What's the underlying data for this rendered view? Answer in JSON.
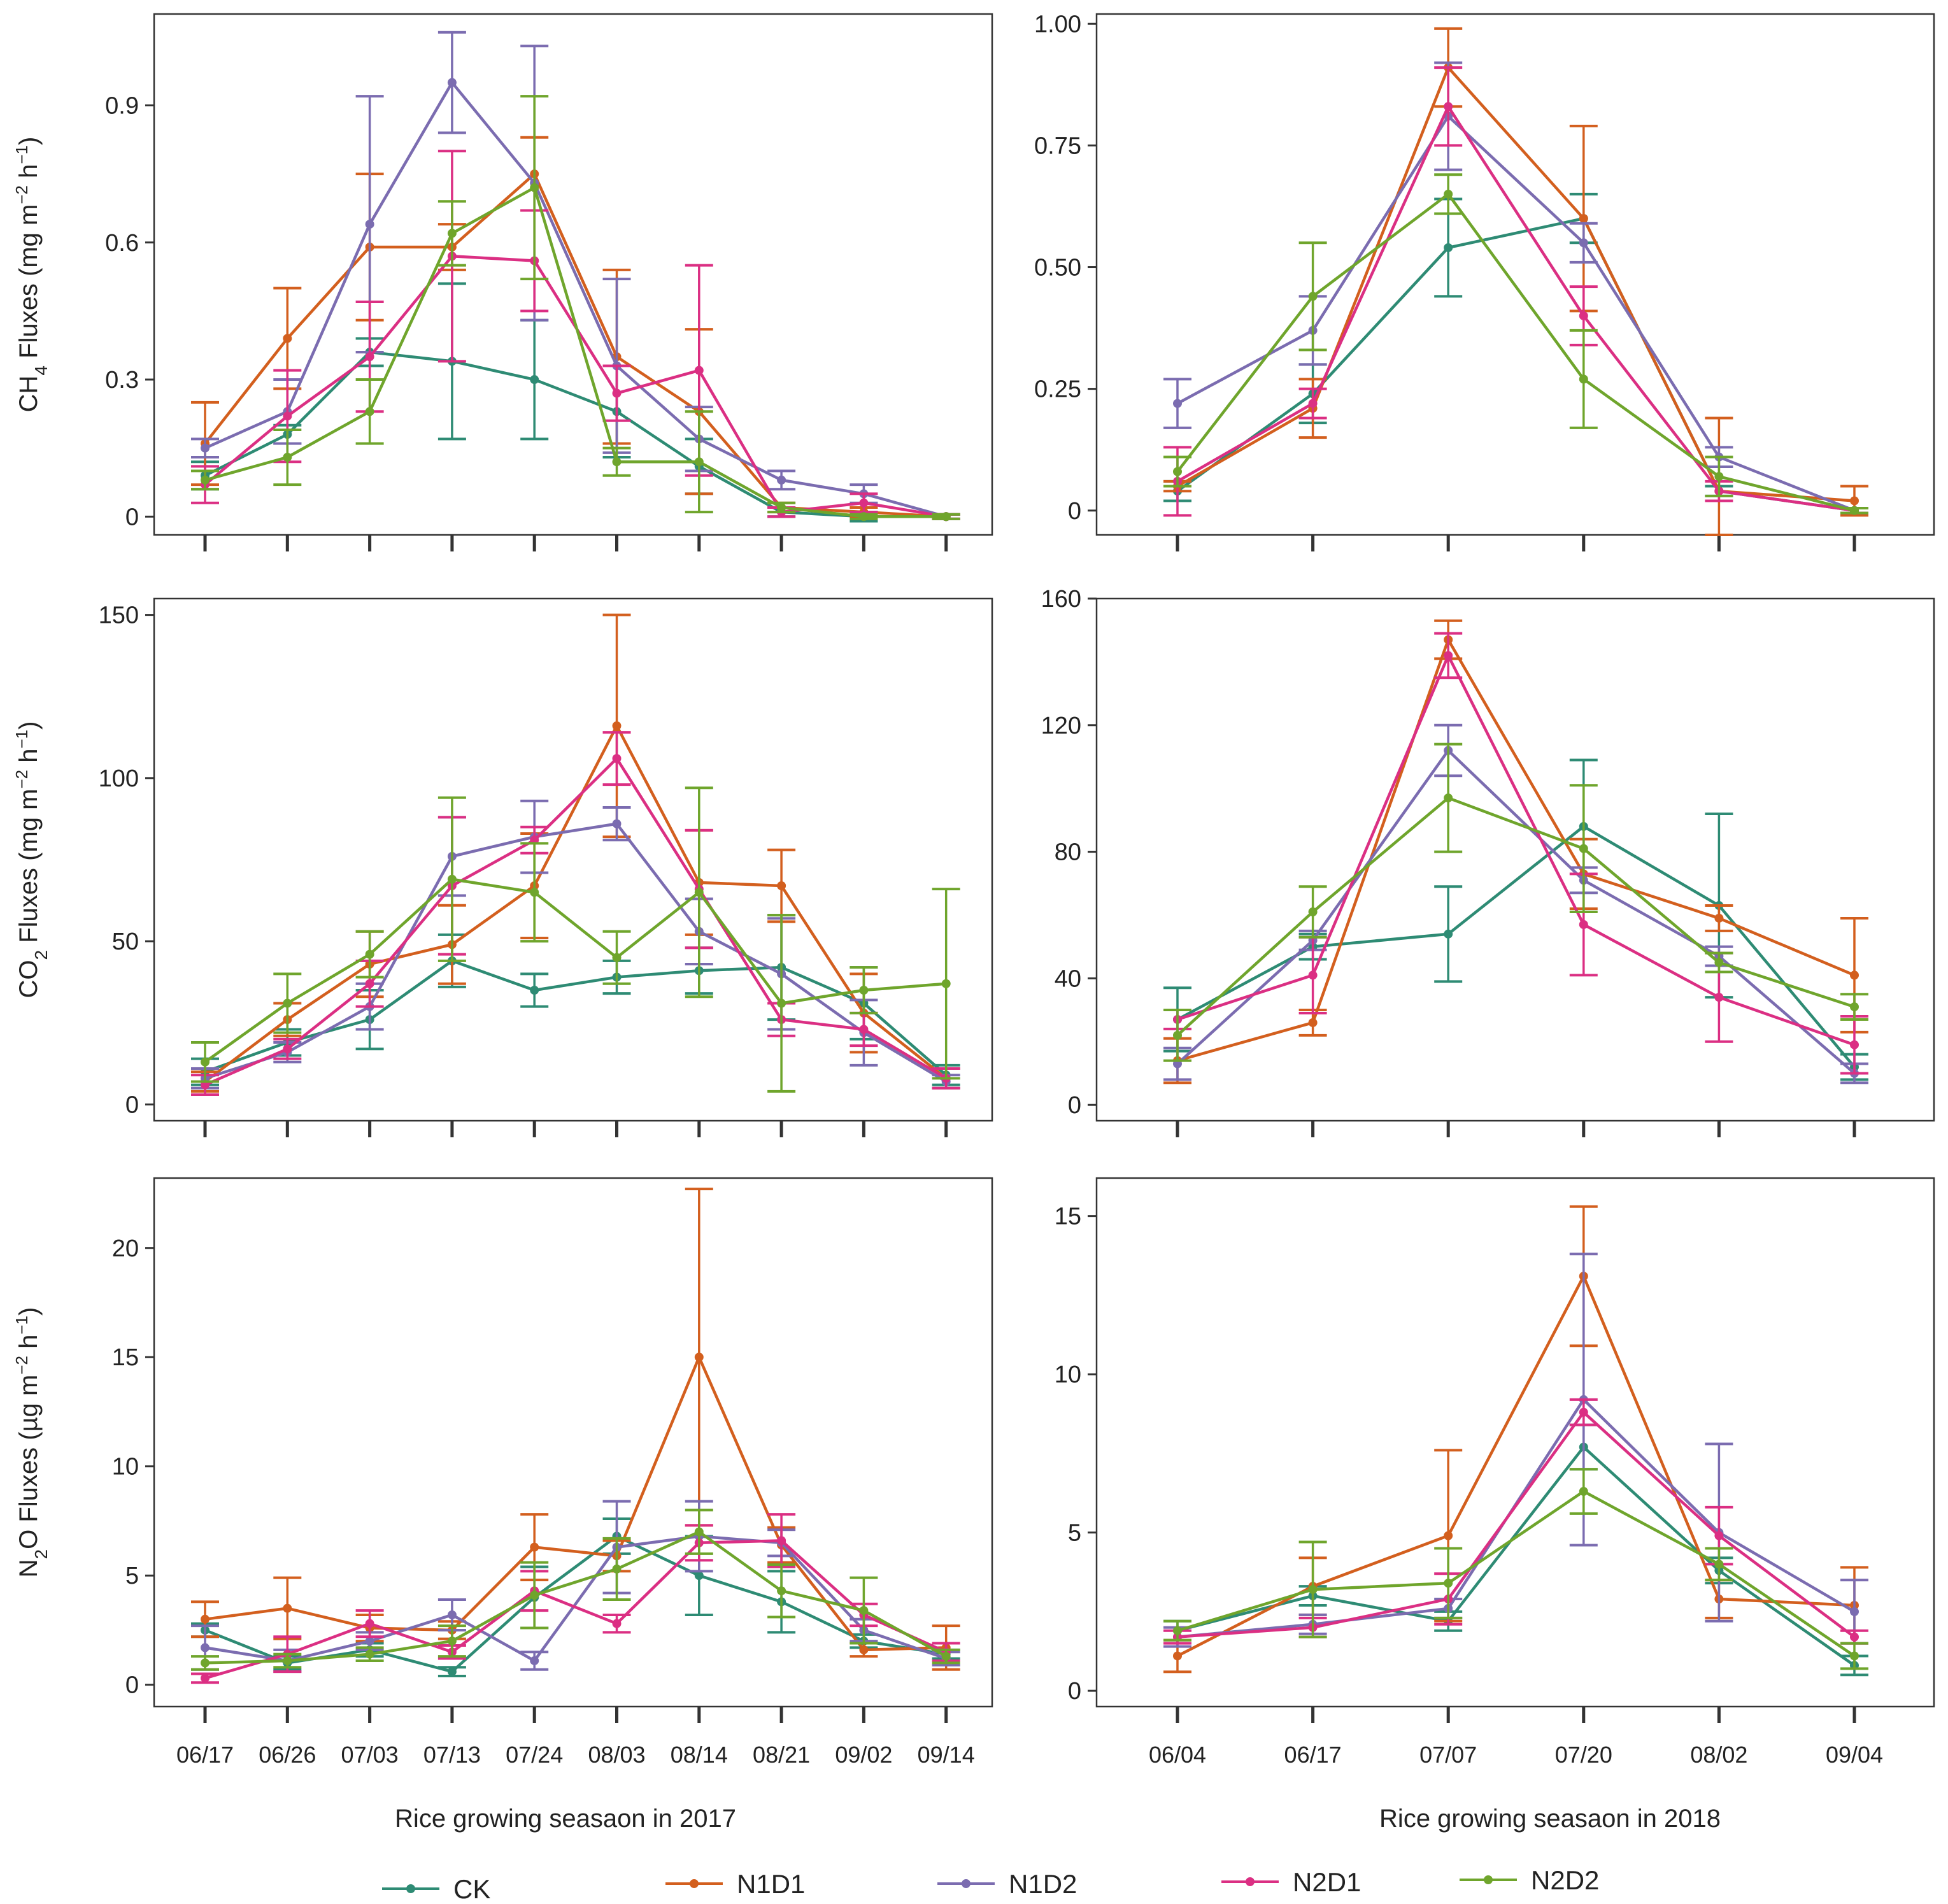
{
  "figure": {
    "x_titles": [
      "Rice growing seasaon in 2017",
      "Rice growing seasaon in 2018"
    ]
  },
  "legend": {
    "items": [
      {
        "name": "CK",
        "color": "#2E8B74"
      },
      {
        "name": "N1D1",
        "color": "#D35F1E"
      },
      {
        "name": "N1D2",
        "color": "#7B6CB0"
      },
      {
        "name": "N2D1",
        "color": "#DB2F83"
      },
      {
        "name": "N2D2",
        "color": "#6FA52C"
      }
    ]
  },
  "chart_data": [
    {
      "id": "ch4-2017",
      "type": "line",
      "ylabel": {
        "base": "CH",
        "sub": "4",
        "text": " Fluxes (mg m",
        "sup1": "−2",
        "mid": " h",
        "sup2": "−1",
        "end": ")"
      },
      "categories": [
        "06/17",
        "06/26",
        "07/03",
        "07/13",
        "07/24",
        "08/03",
        "08/14",
        "08/21",
        "09/02",
        "09/14"
      ],
      "show_xticklabels": false,
      "ylim": [
        -0.04,
        1.1
      ],
      "yticks": [
        {
          "v": 0,
          "label": "0"
        },
        {
          "v": 0.3,
          "label": "0.3"
        },
        {
          "v": 0.6,
          "label": "0.6"
        },
        {
          "v": 0.9,
          "label": "0.9"
        }
      ],
      "series": [
        {
          "name": "CK",
          "values": [
            0.09,
            0.18,
            0.36,
            0.34,
            0.3,
            0.23,
            0.11,
            0.01,
            0.0,
            0.0
          ],
          "errors": [
            0.03,
            0.02,
            0.03,
            0.17,
            0.13,
            0.1,
            0.06,
            0.01,
            0.01,
            0.005
          ]
        },
        {
          "name": "N1D1",
          "values": [
            0.16,
            0.39,
            0.59,
            0.59,
            0.75,
            0.35,
            0.23,
            0.02,
            0.01,
            0.0
          ],
          "errors": [
            0.09,
            0.11,
            0.16,
            0.05,
            0.08,
            0.19,
            0.18,
            0.01,
            0.01,
            0.005
          ]
        },
        {
          "name": "N1D2",
          "values": [
            0.15,
            0.23,
            0.64,
            0.95,
            0.73,
            0.33,
            0.17,
            0.08,
            0.05,
            0.0
          ],
          "errors": [
            0.02,
            0.07,
            0.28,
            0.11,
            0.3,
            0.19,
            0.07,
            0.02,
            0.02,
            0.005
          ]
        },
        {
          "name": "N2D1",
          "values": [
            0.07,
            0.22,
            0.35,
            0.57,
            0.56,
            0.27,
            0.32,
            0.01,
            0.03,
            0.0
          ],
          "errors": [
            0.04,
            0.1,
            0.12,
            0.23,
            0.11,
            0.06,
            0.23,
            0.01,
            0.02,
            0.005
          ]
        },
        {
          "name": "N2D2",
          "values": [
            0.08,
            0.13,
            0.23,
            0.62,
            0.72,
            0.12,
            0.12,
            0.02,
            0.0,
            0.0
          ],
          "errors": [
            0.02,
            0.06,
            0.07,
            0.07,
            0.2,
            0.03,
            0.11,
            0.01,
            0.005,
            0.005
          ]
        }
      ]
    },
    {
      "id": "ch4-2018",
      "type": "line",
      "categories": [
        "06/04",
        "06/17",
        "07/07",
        "07/20",
        "08/02",
        "09/04"
      ],
      "show_xticklabels": false,
      "ylim": [
        -0.05,
        1.02
      ],
      "yticks": [
        {
          "v": 0,
          "label": "0"
        },
        {
          "v": 0.25,
          "label": "0.25"
        },
        {
          "v": 0.5,
          "label": "0.50"
        },
        {
          "v": 0.75,
          "label": "0.75"
        },
        {
          "v": 1.0,
          "label": "1.00"
        }
      ],
      "series": [
        {
          "name": "CK",
          "values": [
            0.04,
            0.24,
            0.54,
            0.6,
            0.04,
            0.0
          ],
          "errors": [
            0.02,
            0.06,
            0.1,
            0.05,
            0.01,
            0.005
          ]
        },
        {
          "name": "N1D1",
          "values": [
            0.05,
            0.21,
            0.91,
            0.6,
            0.04,
            0.02
          ],
          "errors": [
            0.01,
            0.06,
            0.08,
            0.19,
            0.15,
            0.03
          ]
        },
        {
          "name": "N1D2",
          "values": [
            0.22,
            0.37,
            0.81,
            0.55,
            0.11,
            0.0
          ],
          "errors": [
            0.05,
            0.07,
            0.11,
            0.04,
            0.02,
            0.005
          ]
        },
        {
          "name": "N2D1",
          "values": [
            0.06,
            0.22,
            0.83,
            0.4,
            0.04,
            0.0
          ],
          "errors": [
            0.07,
            0.03,
            0.08,
            0.06,
            0.02,
            0.005
          ]
        },
        {
          "name": "N2D2",
          "values": [
            0.08,
            0.44,
            0.65,
            0.27,
            0.07,
            0.0
          ],
          "errors": [
            0.03,
            0.11,
            0.04,
            0.1,
            0.04,
            0.005
          ]
        }
      ]
    },
    {
      "id": "co2-2017",
      "type": "line",
      "ylabel": {
        "base": "CO",
        "sub": "2",
        "text": " Fluxes (mg m",
        "sup1": "−2",
        "mid": " h",
        "sup2": "−1",
        "end": ")"
      },
      "categories": [
        "06/17",
        "06/26",
        "07/03",
        "07/13",
        "07/24",
        "08/03",
        "08/14",
        "08/21",
        "09/02",
        "09/14"
      ],
      "show_xticklabels": false,
      "ylim": [
        -5,
        155
      ],
      "yticks": [
        {
          "v": 0,
          "label": "0"
        },
        {
          "v": 50,
          "label": "50"
        },
        {
          "v": 100,
          "label": "100"
        },
        {
          "v": 150,
          "label": "150"
        }
      ],
      "series": [
        {
          "name": "CK",
          "values": [
            10,
            19,
            26,
            44,
            35,
            39,
            41,
            42,
            31,
            9
          ],
          "errors": [
            4,
            4,
            9,
            8,
            5,
            5,
            7,
            16,
            11,
            3
          ]
        },
        {
          "name": "N1D1",
          "values": [
            7,
            26,
            43,
            49,
            67,
            116,
            68,
            67,
            28,
            8
          ],
          "errors": [
            3,
            5,
            10,
            12,
            16,
            34,
            16,
            11,
            12,
            3
          ]
        },
        {
          "name": "N1D2",
          "values": [
            8,
            16,
            30,
            76,
            82,
            86,
            53,
            40,
            22,
            7
          ],
          "errors": [
            3,
            3,
            7,
            12,
            11,
            5,
            10,
            17,
            10,
            2
          ]
        },
        {
          "name": "N2D1",
          "values": [
            6,
            17,
            37,
            67,
            81,
            106,
            66,
            26,
            23,
            8
          ],
          "errors": [
            3,
            3,
            7,
            21,
            4,
            8,
            18,
            5,
            5,
            3
          ]
        },
        {
          "name": "N2D2",
          "values": [
            13,
            31,
            46,
            69,
            65,
            45,
            65,
            31,
            35,
            37
          ],
          "errors": [
            6,
            9,
            7,
            25,
            15,
            8,
            32,
            27,
            7,
            29
          ]
        }
      ]
    },
    {
      "id": "co2-2018",
      "type": "line",
      "categories": [
        "06/04",
        "06/17",
        "07/07",
        "07/20",
        "08/02",
        "09/04"
      ],
      "show_xticklabels": false,
      "ylim": [
        -5,
        160
      ],
      "yticks": [
        {
          "v": 0,
          "label": "0"
        },
        {
          "v": 40,
          "label": "40"
        },
        {
          "v": 80,
          "label": "80"
        },
        {
          "v": 120,
          "label": "120"
        },
        {
          "v": 160,
          "label": "160"
        }
      ],
      "series": [
        {
          "name": "CK",
          "values": [
            27,
            50,
            54,
            88,
            63,
            12
          ],
          "errors": [
            10,
            4,
            15,
            21,
            29,
            4
          ]
        },
        {
          "name": "N1D1",
          "values": [
            14,
            26,
            147,
            73,
            59,
            41
          ],
          "errors": [
            7,
            4,
            6,
            11,
            4,
            18
          ]
        },
        {
          "name": "N1D2",
          "values": [
            13,
            52,
            112,
            71,
            47,
            10
          ],
          "errors": [
            5,
            3,
            8,
            4,
            3,
            3
          ]
        },
        {
          "name": "N2D1",
          "values": [
            27,
            41,
            142,
            57,
            34,
            19
          ],
          "errors": [
            3,
            12,
            7,
            16,
            14,
            9
          ]
        },
        {
          "name": "N2D2",
          "values": [
            22,
            61,
            97,
            81,
            45,
            31
          ],
          "errors": [
            8,
            8,
            17,
            20,
            3,
            4
          ]
        }
      ]
    },
    {
      "id": "n2o-2017",
      "type": "line",
      "ylabel": {
        "base": "N",
        "sub": "2",
        "text": "O Fluxes (µg m",
        "sup1": "−2",
        "mid": " h",
        "sup2": "−1",
        "end": ")"
      },
      "categories": [
        "06/17",
        "06/26",
        "07/03",
        "07/13",
        "07/24",
        "08/03",
        "08/14",
        "08/21",
        "09/02",
        "09/14"
      ],
      "show_xticklabels": true,
      "ylim": [
        -1,
        23.2
      ],
      "yticks": [
        {
          "v": 0,
          "label": "0"
        },
        {
          "v": 5,
          "label": "5"
        },
        {
          "v": 10,
          "label": "10"
        },
        {
          "v": 15,
          "label": "15"
        },
        {
          "v": 20,
          "label": "20"
        }
      ],
      "series": [
        {
          "name": "CK",
          "values": [
            2.5,
            1.0,
            1.6,
            0.6,
            4.0,
            6.8,
            5.0,
            3.8,
            2.0,
            1.4
          ],
          "errors": [
            0.3,
            0.3,
            0.3,
            0.2,
            1.4,
            0.8,
            1.8,
            1.4,
            0.3,
            0.2
          ]
        },
        {
          "name": "N1D1",
          "values": [
            3.0,
            3.5,
            2.6,
            2.5,
            6.3,
            5.9,
            15.0,
            6.4,
            1.6,
            1.7
          ],
          "errors": [
            0.8,
            1.4,
            0.6,
            0.4,
            1.5,
            0.7,
            7.7,
            0.8,
            0.3,
            1.0
          ]
        },
        {
          "name": "N1D2",
          "values": [
            1.7,
            1.1,
            2.0,
            3.2,
            1.1,
            6.3,
            6.8,
            6.5,
            2.5,
            1.2
          ],
          "errors": [
            1.0,
            0.5,
            0.4,
            0.7,
            0.4,
            2.1,
            1.6,
            0.6,
            0.5,
            0.3
          ]
        },
        {
          "name": "N2D1",
          "values": [
            0.3,
            1.4,
            2.8,
            1.5,
            4.3,
            2.8,
            6.5,
            6.6,
            3.2,
            1.5
          ],
          "errors": [
            0.2,
            0.8,
            0.6,
            0.3,
            0.9,
            0.4,
            0.8,
            1.2,
            0.5,
            0.4
          ]
        },
        {
          "name": "N2D2",
          "values": [
            1.0,
            1.1,
            1.4,
            2.0,
            4.1,
            5.3,
            7.0,
            4.3,
            3.4,
            1.3
          ],
          "errors": [
            0.3,
            0.3,
            0.3,
            0.7,
            1.5,
            1.4,
            1.0,
            1.2,
            1.5,
            0.3
          ]
        }
      ]
    },
    {
      "id": "n2o-2018",
      "type": "line",
      "categories": [
        "06/04",
        "06/17",
        "07/07",
        "07/20",
        "08/02",
        "09/04"
      ],
      "show_xticklabels": true,
      "ylim": [
        -0.5,
        16.2
      ],
      "yticks": [
        {
          "v": 0,
          "label": "0"
        },
        {
          "v": 5,
          "label": "5"
        },
        {
          "v": 10,
          "label": "10"
        },
        {
          "v": 15,
          "label": "15"
        }
      ],
      "series": [
        {
          "name": "CK",
          "values": [
            1.9,
            3.0,
            2.2,
            7.7,
            3.8,
            0.8
          ],
          "errors": [
            0.3,
            0.3,
            0.3,
            0.7,
            0.4,
            0.3
          ]
        },
        {
          "name": "N1D1",
          "values": [
            1.1,
            3.3,
            4.9,
            13.1,
            2.9,
            2.7
          ],
          "errors": [
            0.5,
            0.9,
            2.7,
            2.2,
            0.6,
            1.2
          ]
        },
        {
          "name": "N1D2",
          "values": [
            1.7,
            2.1,
            2.6,
            9.2,
            5.0,
            2.5
          ],
          "errors": [
            0.3,
            0.3,
            0.3,
            4.6,
            2.8,
            1.0
          ]
        },
        {
          "name": "N2D1",
          "values": [
            1.7,
            2.0,
            2.9,
            8.8,
            4.9,
            1.7
          ],
          "errors": [
            0.2,
            0.3,
            0.8,
            0.4,
            0.9,
            0.2
          ]
        },
        {
          "name": "N2D2",
          "values": [
            1.9,
            3.2,
            3.4,
            6.3,
            4.0,
            1.1
          ],
          "errors": [
            0.3,
            1.5,
            1.1,
            0.7,
            0.5,
            0.4
          ]
        }
      ]
    }
  ]
}
